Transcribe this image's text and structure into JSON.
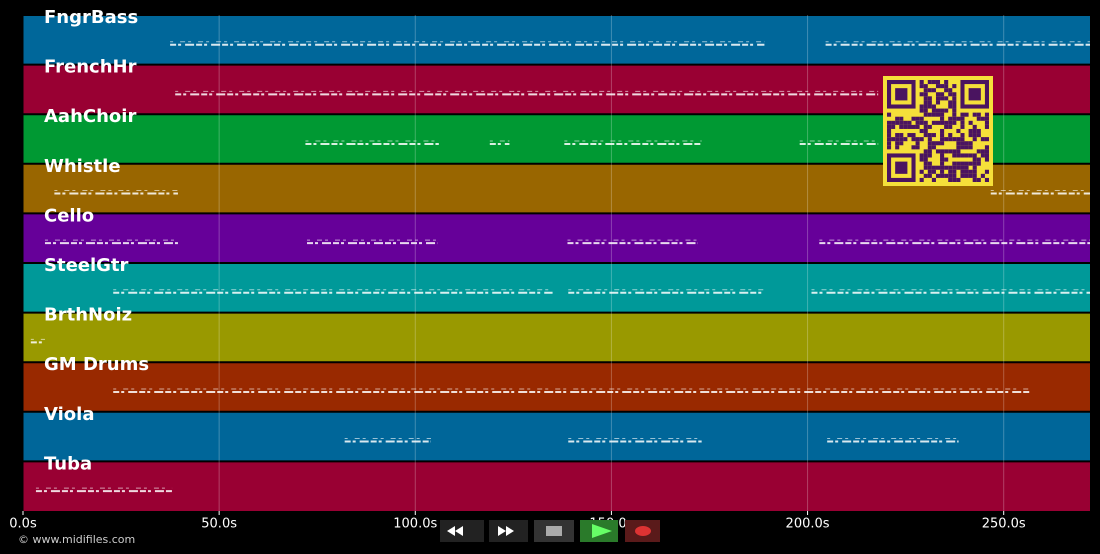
{
  "chart_data": {
    "type": "timeline",
    "xlim": [
      0,
      272
    ],
    "xticks": [
      {
        "value": 0,
        "label": "0.0s"
      },
      {
        "value": 50,
        "label": "50.0s"
      },
      {
        "value": 100,
        "label": "100.0s"
      },
      {
        "value": 150,
        "label": "150.0s"
      },
      {
        "value": 200,
        "label": "200.0s"
      },
      {
        "value": 250,
        "label": "250.0s"
      }
    ],
    "grid": true,
    "series": [
      {
        "name": "FngrBass",
        "color": "#00679a",
        "values": [
          [
            37.5,
            189
          ],
          [
            204.6,
            272
          ]
        ]
      },
      {
        "name": "FrenchHr",
        "color": "#990033",
        "values": [
          [
            38.8,
            218
          ]
        ]
      },
      {
        "name": "AahChoir",
        "color": "#009933",
        "values": [
          [
            72,
            106
          ],
          [
            119,
            124
          ],
          [
            138,
            173
          ],
          [
            198,
            218
          ]
        ]
      },
      {
        "name": "Whistle",
        "color": "#996600",
        "values": [
          [
            8,
            39.5
          ],
          [
            246.7,
            272
          ]
        ]
      },
      {
        "name": "Cello",
        "color": "#660099",
        "values": [
          [
            5.6,
            39.5
          ],
          [
            72.4,
            105.6
          ],
          [
            138.8,
            172
          ],
          [
            203,
            272
          ]
        ]
      },
      {
        "name": "SteelGtr",
        "color": "#009999",
        "values": [
          [
            23,
            135
          ],
          [
            139,
            189
          ],
          [
            201,
            272
          ]
        ]
      },
      {
        "name": "BrthNoiz",
        "color": "#999900",
        "values": [
          [
            2,
            5.6
          ]
        ]
      },
      {
        "name": "GM Drums",
        "color": "#992900",
        "values": [
          [
            23,
            257
          ]
        ]
      },
      {
        "name": "Viola",
        "color": "#006699",
        "values": [
          [
            82,
            104
          ],
          [
            139,
            173
          ],
          [
            205,
            238.5
          ]
        ]
      },
      {
        "name": "Tuba",
        "color": "#990033",
        "values": [
          [
            3.3,
            38
          ]
        ]
      }
    ]
  },
  "footer": "© www.midifiles.com"
}
